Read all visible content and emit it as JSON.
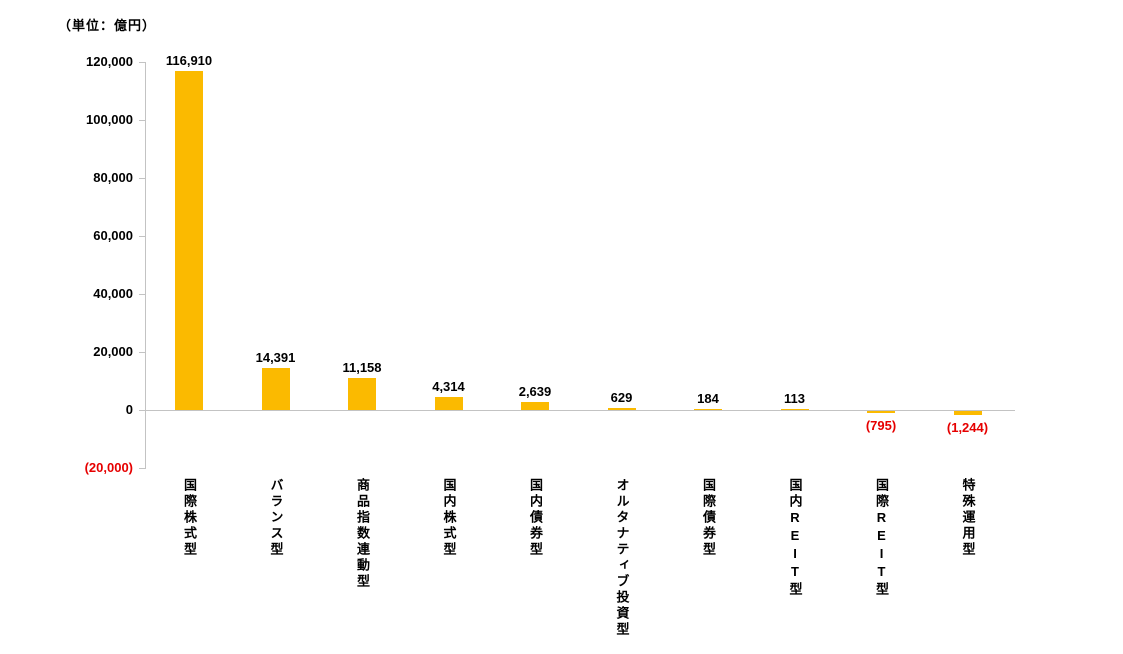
{
  "unit_label": "（単位：億円）",
  "colors": {
    "bar": "#FBBA00",
    "negative_text": "#E60000",
    "axis_line": "#C3C3C3",
    "text": "#000000",
    "background": "#FFFFFF"
  },
  "chart_data": {
    "type": "bar",
    "title": "（単位：億円）",
    "categories": [
      "国際株式型",
      "バランス型",
      "商品指数連動型",
      "国内株式型",
      "国内債券型",
      "オルタナティブ投資型",
      "国際債券型",
      "国内REIT型",
      "国際REIT型",
      "特殊運用型"
    ],
    "values": [
      116910,
      14391,
      11158,
      4314,
      2639,
      629,
      184,
      113,
      -795,
      -1244
    ],
    "value_labels": [
      "116,910",
      "14,391",
      "11,158",
      "4,314",
      "2,639",
      "629",
      "184",
      "113",
      "(795)",
      "(1,244)"
    ],
    "xlabel": "",
    "ylabel": "",
    "ylim": [
      -20000,
      120000
    ],
    "y_ticks": [
      {
        "value": 120000,
        "label": "120,000"
      },
      {
        "value": 100000,
        "label": "100,000"
      },
      {
        "value": 80000,
        "label": "80,000"
      },
      {
        "value": 60000,
        "label": "60,000"
      },
      {
        "value": 40000,
        "label": "40,000"
      },
      {
        "value": 20000,
        "label": "20,000"
      },
      {
        "value": 0,
        "label": "0"
      },
      {
        "value": -20000,
        "label": "(20,000)"
      }
    ],
    "grid": false,
    "legend": false
  }
}
